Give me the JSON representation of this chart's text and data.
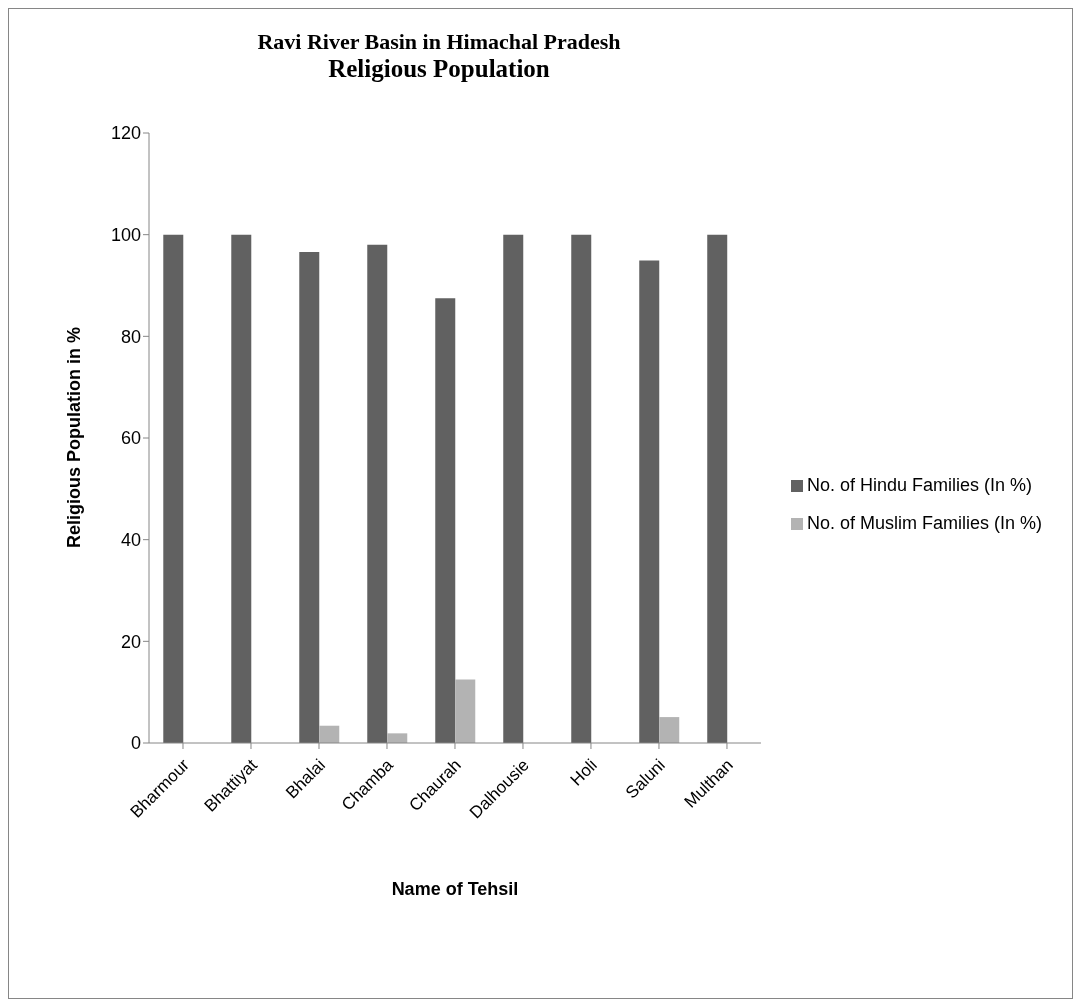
{
  "chart_data": {
    "type": "bar",
    "title": "Ravi River Basin in Himachal Pradesh",
    "subtitle": "Religious Population",
    "xlabel": "Name of Tehsil",
    "ylabel": "Religious Population in %",
    "categories": [
      "Bharmour",
      "Bhattiyat",
      "Bhalai",
      "Chamba",
      "Chaurah",
      "Dalhousie",
      "Holi",
      "Saluni",
      "Multhan"
    ],
    "series": [
      {
        "name": "No. of Hindu Families (In %)",
        "color": "#616161",
        "values": [
          100,
          100,
          96.6,
          98.0,
          87.5,
          100,
          100,
          94.9,
          100
        ]
      },
      {
        "name": "No. of Muslim Families (In %)",
        "color": "#b3b3b3",
        "values": [
          0,
          0,
          3.4,
          1.9,
          12.5,
          0,
          0,
          5.1,
          0
        ]
      }
    ],
    "ylim": [
      0,
      120
    ],
    "yticks": [
      0,
      20,
      40,
      60,
      80,
      100,
      120
    ],
    "grid": false,
    "legend": "right"
  }
}
